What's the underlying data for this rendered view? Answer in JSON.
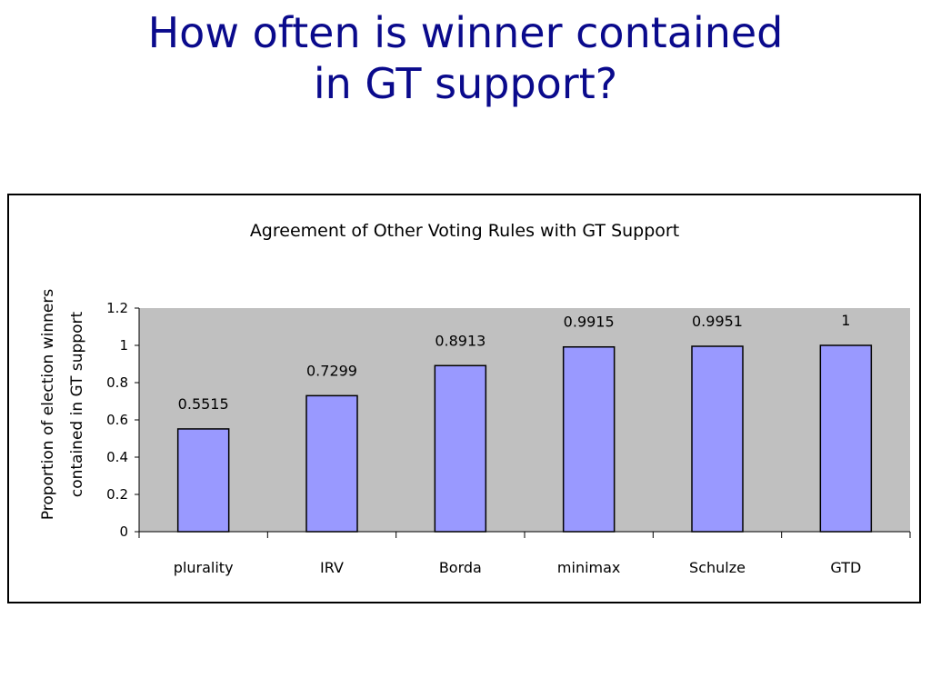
{
  "slide": {
    "title_line1": "How often is winner contained",
    "title_line2": "in GT support?",
    "title_color": "#0a0a8c"
  },
  "chart_data": {
    "type": "bar",
    "title": "Agreement of Other Voting Rules with GT Support",
    "xlabel": "",
    "ylabel_line1": "Proportion of election winners",
    "ylabel_line2": "contained in GT support",
    "categories": [
      "plurality",
      "IRV",
      "Borda",
      "minimax",
      "Schulze",
      "GTD"
    ],
    "values": [
      0.5515,
      0.7299,
      0.8913,
      0.9915,
      0.9951,
      1
    ],
    "data_labels": [
      "0.5515",
      "0.7299",
      "0.8913",
      "0.9915",
      "0.9951",
      "1"
    ],
    "ylim": [
      0,
      1.2
    ],
    "yticks": [
      "0",
      "0.2",
      "0.4",
      "0.6",
      "0.8",
      "1",
      "1.2"
    ],
    "ytick_values": [
      0,
      0.2,
      0.4,
      0.6,
      0.8,
      1,
      1.2
    ],
    "grid": false,
    "legend": "none",
    "bar_color": "#9999ff",
    "plot_background": "#c0c0c0"
  }
}
